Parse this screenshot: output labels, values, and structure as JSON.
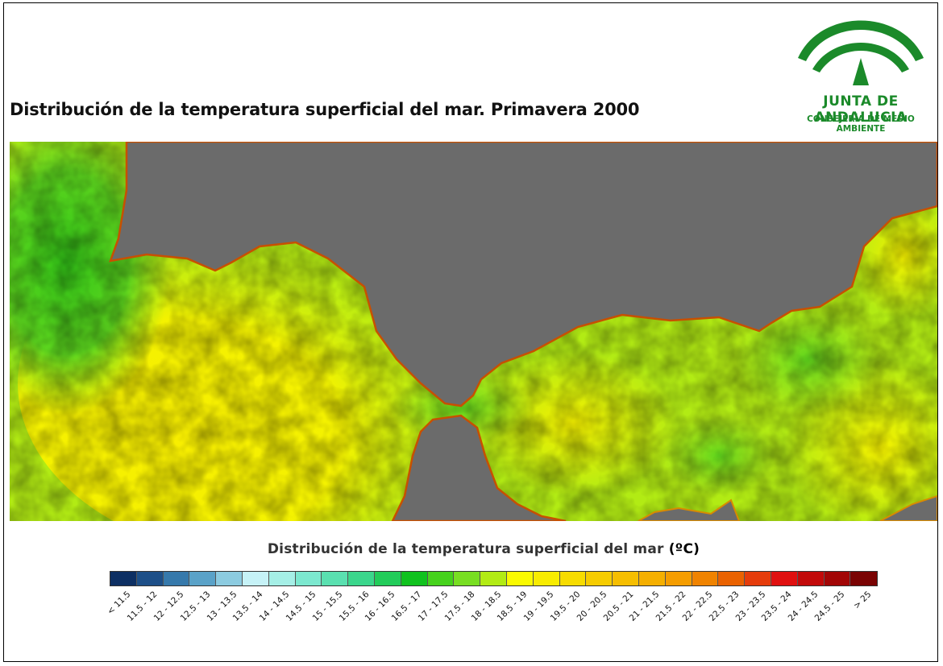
{
  "title": "Distribución de la temperatura superficial del mar. Primavera 2000",
  "logo": {
    "line1": "JUNTA DE ANDALUCIA",
    "line2": "CONSEJERÍA DE MEDIO AMBIENTE",
    "color": "#1b8a2a"
  },
  "legend": {
    "title": "Distribución de la temperatura superficial del mar",
    "unit": "(ºC)",
    "classes": [
      {
        "label": "< 11.5",
        "color": "#0d2f63"
      },
      {
        "label": "11.5 - 12",
        "color": "#1d4f88"
      },
      {
        "label": "12 - 12.5",
        "color": "#3679ab"
      },
      {
        "label": "12.5 - 13",
        "color": "#5aa2c8"
      },
      {
        "label": "13 - 13.5",
        "color": "#8ccbe0"
      },
      {
        "label": "13.5 - 14",
        "color": "#c6f2f7"
      },
      {
        "label": "14 - 14.5",
        "color": "#a5efe6"
      },
      {
        "label": "14.5 - 15",
        "color": "#7ce8cf"
      },
      {
        "label": "15 - 15.5",
        "color": "#5ae0b0"
      },
      {
        "label": "15.5 - 16",
        "color": "#3bd68c"
      },
      {
        "label": "16 - 16.5",
        "color": "#22cc5a"
      },
      {
        "label": "16.5 - 17",
        "color": "#10c21e"
      },
      {
        "label": "17 - 17.5",
        "color": "#46d21c"
      },
      {
        "label": "17.5 - 18",
        "color": "#78de22"
      },
      {
        "label": "18 - 18.5",
        "color": "#b2eb14"
      },
      {
        "label": "18.5 - 19",
        "color": "#fafa00"
      },
      {
        "label": "19 - 19.5",
        "color": "#f8ec00"
      },
      {
        "label": "19.5 - 20",
        "color": "#f7dc00"
      },
      {
        "label": "20 - 20.5",
        "color": "#f6cc00"
      },
      {
        "label": "20.5 - 21",
        "color": "#f6be00"
      },
      {
        "label": "21 - 21.5",
        "color": "#f5af00"
      },
      {
        "label": "21.5 - 22",
        "color": "#f59d00"
      },
      {
        "label": "22 - 22.5",
        "color": "#f08300"
      },
      {
        "label": "22.5 - 23",
        "color": "#ea6200"
      },
      {
        "label": "23 - 23.5",
        "color": "#e53c0b"
      },
      {
        "label": "23.5 - 24",
        "color": "#e01010"
      },
      {
        "label": "24 - 24.5",
        "color": "#c20a0a"
      },
      {
        "label": "24.5 - 25",
        "color": "#a20606"
      },
      {
        "label": "> 25",
        "color": "#7a0303"
      }
    ]
  },
  "map_colors": {
    "land": "#6b6b6b",
    "sea_dominant": "#b2eb14"
  }
}
